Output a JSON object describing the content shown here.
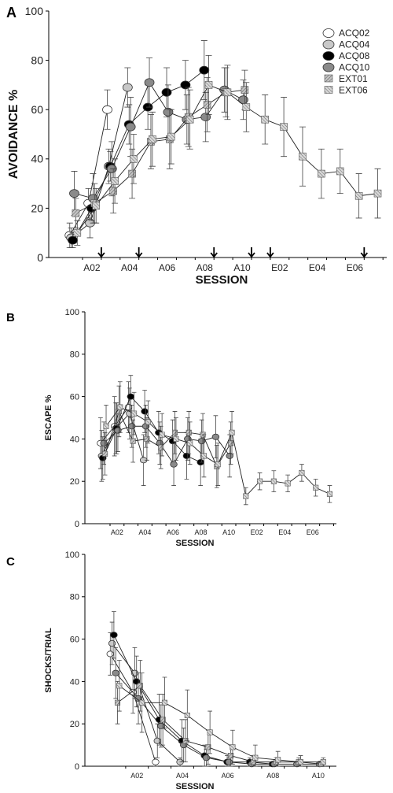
{
  "chart_data": [
    {
      "panel": "A",
      "type": "line",
      "xlabel": "SESSION",
      "ylabel": "AVOIDANCE %",
      "ylim": [
        0,
        100
      ],
      "yticks": [
        0,
        20,
        40,
        60,
        80,
        100
      ],
      "xticklabels": [
        "A02",
        "A04",
        "A06",
        "A08",
        "A10",
        "E02",
        "E04",
        "E06"
      ],
      "legend_position": "top-right",
      "arrows_at_session": [
        2.5,
        4.5,
        8.5,
        10.5,
        11.5,
        16.5
      ],
      "series": [
        {
          "name": "ACQ02",
          "marker": "circle",
          "fill": "#ffffff",
          "x": [
            1,
            2,
            3
          ],
          "y": [
            9,
            22,
            60
          ],
          "err": [
            5,
            6,
            8
          ]
        },
        {
          "name": "ACQ04",
          "marker": "circle",
          "fill": "#c8c8c8",
          "x": [
            1,
            2,
            3,
            4
          ],
          "y": [
            8,
            14,
            37,
            69
          ],
          "err": [
            4,
            6,
            7,
            8
          ]
        },
        {
          "name": "ACQ08",
          "marker": "circle",
          "fill": "#000000",
          "x": [
            1,
            2,
            3,
            4,
            5,
            6,
            7,
            8
          ],
          "y": [
            7,
            20,
            37,
            54,
            61,
            67,
            70,
            76
          ],
          "err": [
            3,
            5,
            6,
            8,
            9,
            10,
            10,
            12
          ]
        },
        {
          "name": "ACQ10",
          "marker": "circle",
          "fill": "#8a8a8a",
          "x": [
            1,
            2,
            3,
            4,
            5,
            6,
            7,
            8,
            9,
            10
          ],
          "y": [
            26,
            24,
            36,
            53,
            71,
            59,
            56,
            57,
            68,
            64
          ],
          "err": [
            9,
            10,
            11,
            12,
            10,
            11,
            10,
            10,
            9,
            8
          ]
        },
        {
          "name": "EXT01",
          "marker": "square",
          "fill": "#c4c4c4",
          "x": [
            1,
            2,
            3,
            4,
            5,
            6,
            7,
            8,
            9,
            10
          ],
          "y": [
            18,
            22,
            27,
            34,
            47,
            48,
            57,
            62,
            67,
            68
          ],
          "err": [
            6,
            8,
            9,
            10,
            11,
            12,
            12,
            11,
            10,
            8
          ]
        },
        {
          "name": "EXT06",
          "marker": "square",
          "fill": "#d8d8d8",
          "x": [
            1,
            2,
            3,
            4,
            5,
            6,
            7,
            8,
            9,
            10,
            11,
            12,
            13,
            14,
            15,
            16,
            17
          ],
          "y": [
            10,
            21,
            31,
            40,
            48,
            49,
            56,
            70,
            67,
            61,
            56,
            53,
            41,
            34,
            35,
            25,
            26
          ],
          "err": [
            5,
            7,
            9,
            10,
            11,
            11,
            12,
            12,
            11,
            10,
            10,
            12,
            12,
            10,
            9,
            9,
            10
          ]
        }
      ]
    },
    {
      "panel": "B",
      "type": "line",
      "xlabel": "SESSION",
      "ylabel": "ESCAPE %",
      "ylim": [
        0,
        100
      ],
      "yticks": [
        0,
        20,
        40,
        60,
        80,
        100
      ],
      "xticklabels": [
        "A02",
        "A04",
        "A06",
        "A08",
        "A10",
        "E02",
        "E04",
        "E06"
      ],
      "series": [
        {
          "name": "ACQ02",
          "marker": "circle",
          "fill": "#ffffff",
          "x": [
            1,
            2,
            3
          ],
          "y": [
            38,
            46,
            55
          ],
          "err": [
            12,
            14,
            12
          ]
        },
        {
          "name": "ACQ04",
          "marker": "circle",
          "fill": "#c8c8c8",
          "x": [
            1,
            2,
            3,
            4
          ],
          "y": [
            32,
            45,
            52,
            30
          ],
          "err": [
            12,
            12,
            12,
            12
          ]
        },
        {
          "name": "ACQ08",
          "marker": "circle",
          "fill": "#000000",
          "x": [
            1,
            2,
            3,
            4,
            5,
            6,
            7,
            8
          ],
          "y": [
            31,
            45,
            60,
            53,
            43,
            39,
            32,
            29
          ],
          "err": [
            10,
            12,
            10,
            10,
            10,
            10,
            11,
            11
          ]
        },
        {
          "name": "ACQ10",
          "marker": "circle",
          "fill": "#8a8a8a",
          "x": [
            1,
            2,
            3,
            4,
            5,
            6,
            7,
            8,
            9,
            10
          ],
          "y": [
            38,
            44,
            46,
            46,
            38,
            28,
            40,
            39,
            41,
            32
          ],
          "err": [
            10,
            10,
            10,
            10,
            10,
            10,
            10,
            10,
            10,
            10
          ]
        },
        {
          "name": "EXT01",
          "marker": "square",
          "fill": "#c4c4c4",
          "x": [
            1,
            2,
            3,
            4,
            5,
            6,
            7,
            8,
            9,
            10
          ],
          "y": [
            33,
            53,
            39,
            40,
            36,
            43,
            43,
            42,
            27,
            38
          ],
          "err": [
            10,
            12,
            10,
            10,
            10,
            10,
            10,
            10,
            10,
            10
          ]
        },
        {
          "name": "EXT06",
          "marker": "square",
          "fill": "#d8d8d8",
          "x": [
            1,
            2,
            3,
            4,
            5,
            6,
            7,
            8,
            9,
            10,
            11,
            12,
            13,
            14,
            15,
            16,
            17
          ],
          "y": [
            46,
            55,
            52,
            48,
            42,
            40,
            38,
            32,
            28,
            43,
            13,
            20,
            20,
            19,
            24,
            17,
            14
          ],
          "err": [
            10,
            12,
            10,
            10,
            10,
            10,
            10,
            10,
            10,
            10,
            4,
            4,
            5,
            4,
            4,
            4,
            4
          ]
        }
      ]
    },
    {
      "panel": "C",
      "type": "line",
      "xlabel": "SESSION",
      "ylabel": "SHOCKS/TRIAL",
      "ylim": [
        0,
        100
      ],
      "yticks": [
        0,
        20,
        40,
        60,
        80,
        100
      ],
      "xticklabels": [
        "A02",
        "A04",
        "A06",
        "A08",
        "A10"
      ],
      "series": [
        {
          "name": "ACQ02",
          "marker": "circle",
          "fill": "#ffffff",
          "x": [
            1,
            2,
            3
          ],
          "y": [
            53,
            35,
            2
          ],
          "err": [
            10,
            10,
            2
          ]
        },
        {
          "name": "ACQ04",
          "marker": "circle",
          "fill": "#c8c8c8",
          "x": [
            1,
            2,
            3,
            4
          ],
          "y": [
            58,
            44,
            12,
            2
          ],
          "err": [
            10,
            12,
            8,
            2
          ]
        },
        {
          "name": "ACQ08",
          "marker": "circle",
          "fill": "#000000",
          "x": [
            1,
            2,
            3,
            4,
            5,
            6,
            7,
            8
          ],
          "y": [
            62,
            40,
            22,
            12,
            5,
            2,
            2,
            1
          ],
          "err": [
            11,
            12,
            12,
            10,
            5,
            3,
            2,
            1
          ]
        },
        {
          "name": "ACQ10",
          "marker": "circle",
          "fill": "#8a8a8a",
          "x": [
            1,
            2,
            3,
            4,
            5,
            6,
            7,
            8,
            9,
            10
          ],
          "y": [
            44,
            32,
            19,
            10,
            4,
            2,
            1,
            1,
            1,
            1
          ],
          "err": [
            12,
            12,
            10,
            8,
            4,
            2,
            1,
            1,
            1,
            1
          ]
        },
        {
          "name": "EXT01",
          "marker": "square",
          "fill": "#c4c4c4",
          "x": [
            1,
            2,
            3,
            4,
            5,
            6,
            7,
            8,
            9,
            10
          ],
          "y": [
            30,
            38,
            22,
            12,
            9,
            5,
            2,
            2,
            2,
            1
          ],
          "err": [
            10,
            12,
            12,
            10,
            8,
            5,
            3,
            2,
            2,
            1
          ]
        },
        {
          "name": "EXT06",
          "marker": "square",
          "fill": "#d8d8d8",
          "x": [
            1,
            2,
            3,
            4,
            5,
            6,
            7,
            8,
            9,
            10
          ],
          "y": [
            38,
            30,
            30,
            24,
            16,
            9,
            4,
            3,
            2,
            2
          ],
          "err": [
            12,
            14,
            12,
            12,
            10,
            8,
            6,
            4,
            3,
            2
          ]
        }
      ]
    }
  ]
}
